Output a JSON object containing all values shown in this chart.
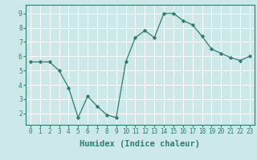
{
  "x": [
    0,
    1,
    2,
    3,
    4,
    5,
    6,
    7,
    8,
    9,
    10,
    11,
    12,
    13,
    14,
    15,
    16,
    17,
    18,
    19,
    20,
    21,
    22,
    23
  ],
  "y": [
    5.6,
    5.6,
    5.6,
    5.0,
    3.8,
    1.7,
    3.2,
    2.5,
    1.9,
    1.7,
    5.6,
    7.3,
    7.8,
    7.3,
    9.0,
    9.0,
    8.5,
    8.2,
    7.4,
    6.5,
    6.2,
    5.9,
    5.7,
    6.0
  ],
  "line_color": "#2e7d6e",
  "marker": "D",
  "marker_size": 1.8,
  "bg_color": "#cce8e8",
  "grid_color": "#ffffff",
  "xlabel": "Humidex (Indice chaleur)",
  "ylim": [
    1.2,
    9.6
  ],
  "xlim": [
    -0.5,
    23.5
  ],
  "yticks": [
    2,
    3,
    4,
    5,
    6,
    7,
    8,
    9
  ],
  "xticks": [
    0,
    1,
    2,
    3,
    4,
    5,
    6,
    7,
    8,
    9,
    10,
    11,
    12,
    13,
    14,
    15,
    16,
    17,
    18,
    19,
    20,
    21,
    22,
    23
  ],
  "xtick_labels": [
    "0",
    "1",
    "2",
    "3",
    "4",
    "5",
    "6",
    "7",
    "8",
    "9",
    "10",
    "11",
    "12",
    "13",
    "14",
    "15",
    "16",
    "17",
    "18",
    "19",
    "20",
    "21",
    "22",
    "23"
  ],
  "tick_fontsize": 5.5,
  "xlabel_fontsize": 7.5,
  "spine_color": "#2e7d6e",
  "tick_color": "#2e7d6e"
}
